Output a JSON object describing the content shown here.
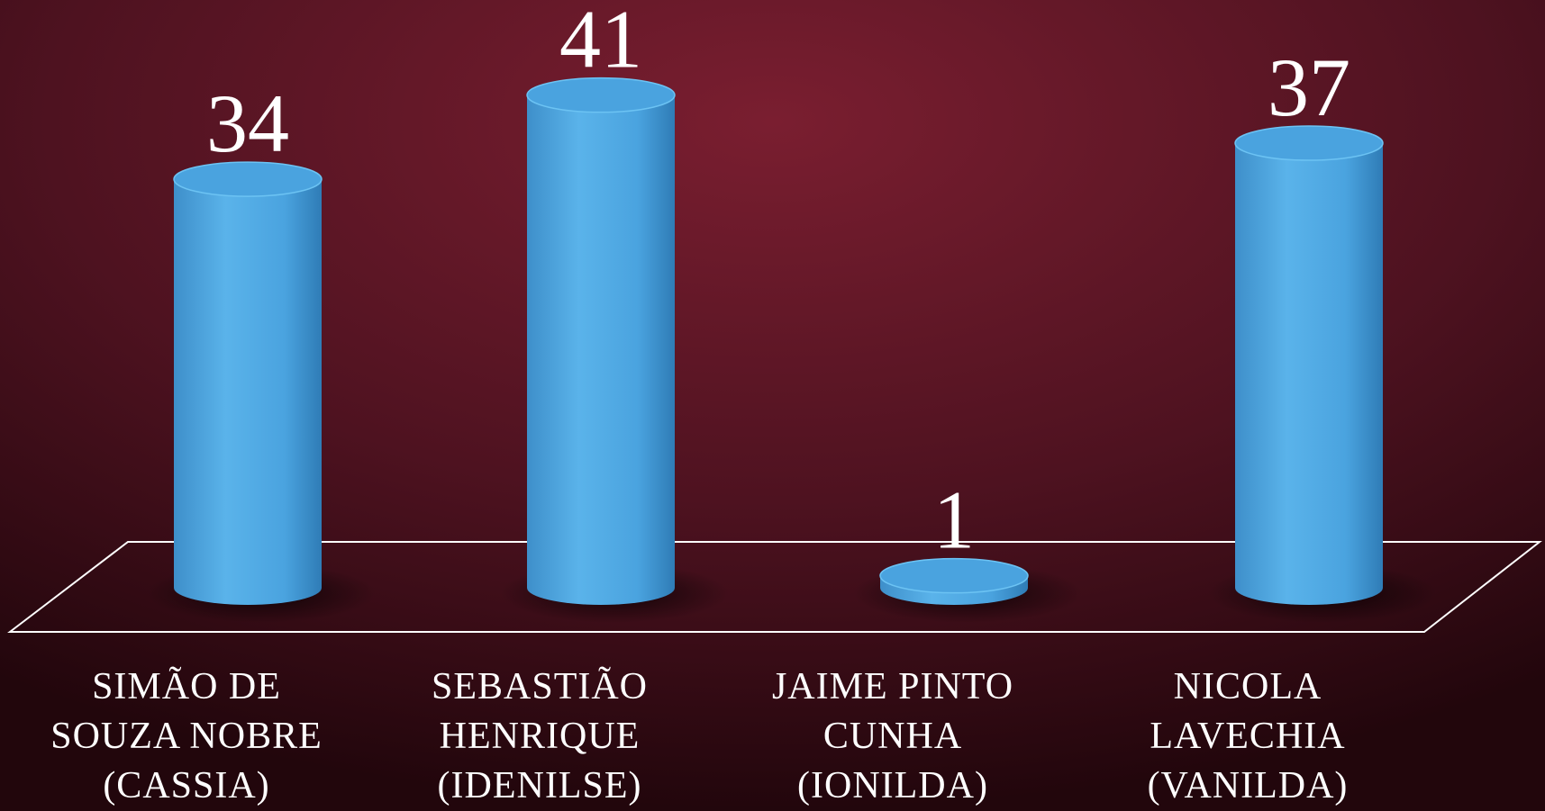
{
  "chart_data": {
    "type": "bar",
    "categories": [
      "SIMÃO DE SOUZA NOBRE (CASSIA)",
      "SEBASTIÃO HENRIQUE (IDENILSE)",
      "JAIME PINTO CUNHA (IONILDA)",
      "NICOLA LAVECHIA (VANILDA)"
    ],
    "values": [
      34,
      41,
      1,
      37
    ],
    "color": "#4aa3df"
  }
}
